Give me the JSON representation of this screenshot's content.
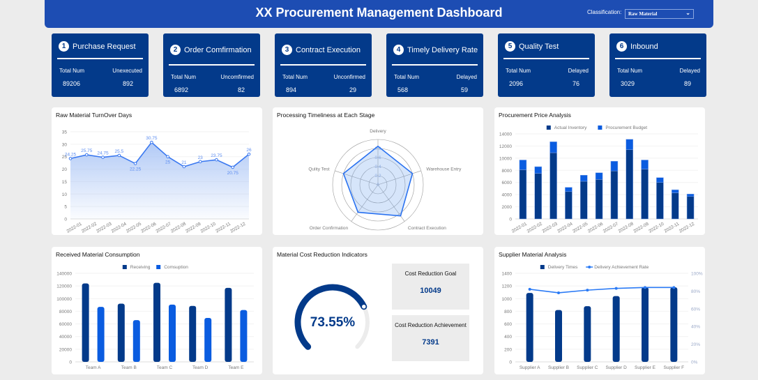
{
  "header": {
    "title": "XX Procurement Management Dashboard",
    "classification_label": "Classification:",
    "classification_value": "Raw Material"
  },
  "kpis": [
    {
      "num": "1",
      "title": "Purchase Request",
      "label1": "Total Num",
      "label2": "Unexecuted",
      "value1": "89206",
      "value2": "892"
    },
    {
      "num": "2",
      "title": "Order Comfirmation",
      "label1": "Total Num",
      "label2": "Uncomfirmed",
      "value1": "6892",
      "value2": "82"
    },
    {
      "num": "3",
      "title": "Contract Execution",
      "label1": "Total Num",
      "label2": "Unconfirmed",
      "value1": "894",
      "value2": "29"
    },
    {
      "num": "4",
      "title": "Timely Delivery Rate",
      "label1": "Total Num",
      "label2": "Delayed",
      "value1": "568",
      "value2": "59"
    },
    {
      "num": "5",
      "title": "Quality Test",
      "label1": "Total Num",
      "label2": "Delayed",
      "value1": "2096",
      "value2": "76"
    },
    {
      "num": "6",
      "title": "Inbound",
      "label1": "Total Num",
      "label2": "Delayed",
      "value1": "3029",
      "value2": "89"
    }
  ],
  "colors": {
    "dark": "#033a8a",
    "blue": "#0a5ce0",
    "line": "#3a78f0",
    "header": "#1d4db3"
  },
  "cost": {
    "title": "Material Cost Reduction Indicators",
    "percent_label": "73.55%",
    "percent": 73.55,
    "goal_label": "Cost Reduction Goal",
    "goal": "10049",
    "achv_label": "Cost Reduction Achievement",
    "achv": "7391"
  },
  "chart_data": [
    {
      "type": "line",
      "title": "Raw Material TurnOver Days",
      "categories": [
        "2022-01",
        "2022-02",
        "2022-03",
        "2022-04",
        "2022-05",
        "2022-06",
        "2022-07",
        "2022-08",
        "2022-09",
        "2022-10",
        "2022-11",
        "2022-12"
      ],
      "values": [
        24.25,
        25.75,
        24.75,
        25.5,
        22.25,
        30.75,
        25,
        21,
        23,
        23.75,
        20.75,
        26
      ],
      "labels": [
        "24.25",
        "25.75",
        "24.75",
        "25.5",
        "22.25",
        "30.75",
        "25",
        "21",
        "23",
        "23.75",
        "20.75",
        "26"
      ],
      "ylim": [
        0,
        35
      ],
      "yticks": [
        "0",
        "5",
        "10",
        "15",
        "20",
        "25",
        "30",
        "35"
      ],
      "area": true
    },
    {
      "type": "radar",
      "title": "Processing Timeliness at Each Stage",
      "indicators": [
        "Delivery",
        "Warehouse Entry",
        "Contract Execution",
        "Order Confirmation",
        "Qulity Test"
      ],
      "values": [
        0.85,
        0.8,
        0.85,
        0.75,
        0.8
      ],
      "ticks": [
        "0",
        "0.2",
        "0.4",
        "0.6",
        "0.8"
      ],
      "max": 1
    },
    {
      "type": "bar",
      "stacked": true,
      "title": "Procurement Price Analysis",
      "categories": [
        "2022-01",
        "2022-02",
        "2022-03",
        "2022-04",
        "2022-05",
        "2022-06",
        "2022-07",
        "2022-08",
        "2022-09",
        "2022-10",
        "2022-11",
        "2022-12"
      ],
      "series": [
        {
          "name": "Actual Inventory",
          "values": [
            8100,
            7500,
            10900,
            4500,
            6200,
            6500,
            7900,
            11400,
            8200,
            6000,
            4300,
            3700
          ]
        },
        {
          "name": "Procurement Budget",
          "values": [
            1600,
            1100,
            1800,
            700,
            1000,
            1100,
            1600,
            1700,
            1500,
            800,
            500,
            400
          ]
        }
      ],
      "ylim": [
        0,
        14000
      ],
      "yticks": [
        "0",
        "2000",
        "4000",
        "6000",
        "8000",
        "10000",
        "12000",
        "14000"
      ],
      "legend": "top"
    },
    {
      "type": "bar",
      "title": "Received Material Consumption",
      "categories": [
        "Team A",
        "Team B",
        "Team C",
        "Team D",
        "Team E"
      ],
      "series": [
        {
          "name": "Receiving",
          "values": [
            124000,
            92000,
            125000,
            88500,
            117000
          ]
        },
        {
          "name": "Comsuption",
          "values": [
            87000,
            66000,
            90500,
            69500,
            82000
          ]
        }
      ],
      "ylim": [
        0,
        140000
      ],
      "yticks": [
        "0",
        "20000",
        "40000",
        "60000",
        "80000",
        "100000",
        "120000",
        "140000"
      ],
      "legend": "top"
    },
    {
      "type": "bar+line",
      "title": "Supplier Material Analysis",
      "categories": [
        "Supplier A",
        "Supplier B",
        "Supplier C",
        "Supplier D",
        "Supplier E",
        "Supplier F"
      ],
      "series": [
        {
          "name": "Delivery Times",
          "values": [
            1090,
            820,
            880,
            1040,
            1180,
            1180
          ]
        },
        {
          "name": "Delivery Achievement Rate",
          "values": [
            82,
            78,
            81,
            83,
            84,
            84
          ],
          "axis": "right"
        }
      ],
      "ylim": [
        0,
        1400
      ],
      "yticks": [
        "0",
        "200",
        "400",
        "600",
        "800",
        "1000",
        "1200",
        "1400"
      ],
      "y2lim": [
        0,
        100
      ],
      "y2ticks": [
        "0%",
        "20%",
        "40%",
        "60%",
        "80%",
        "100%"
      ],
      "legend": "top"
    }
  ]
}
